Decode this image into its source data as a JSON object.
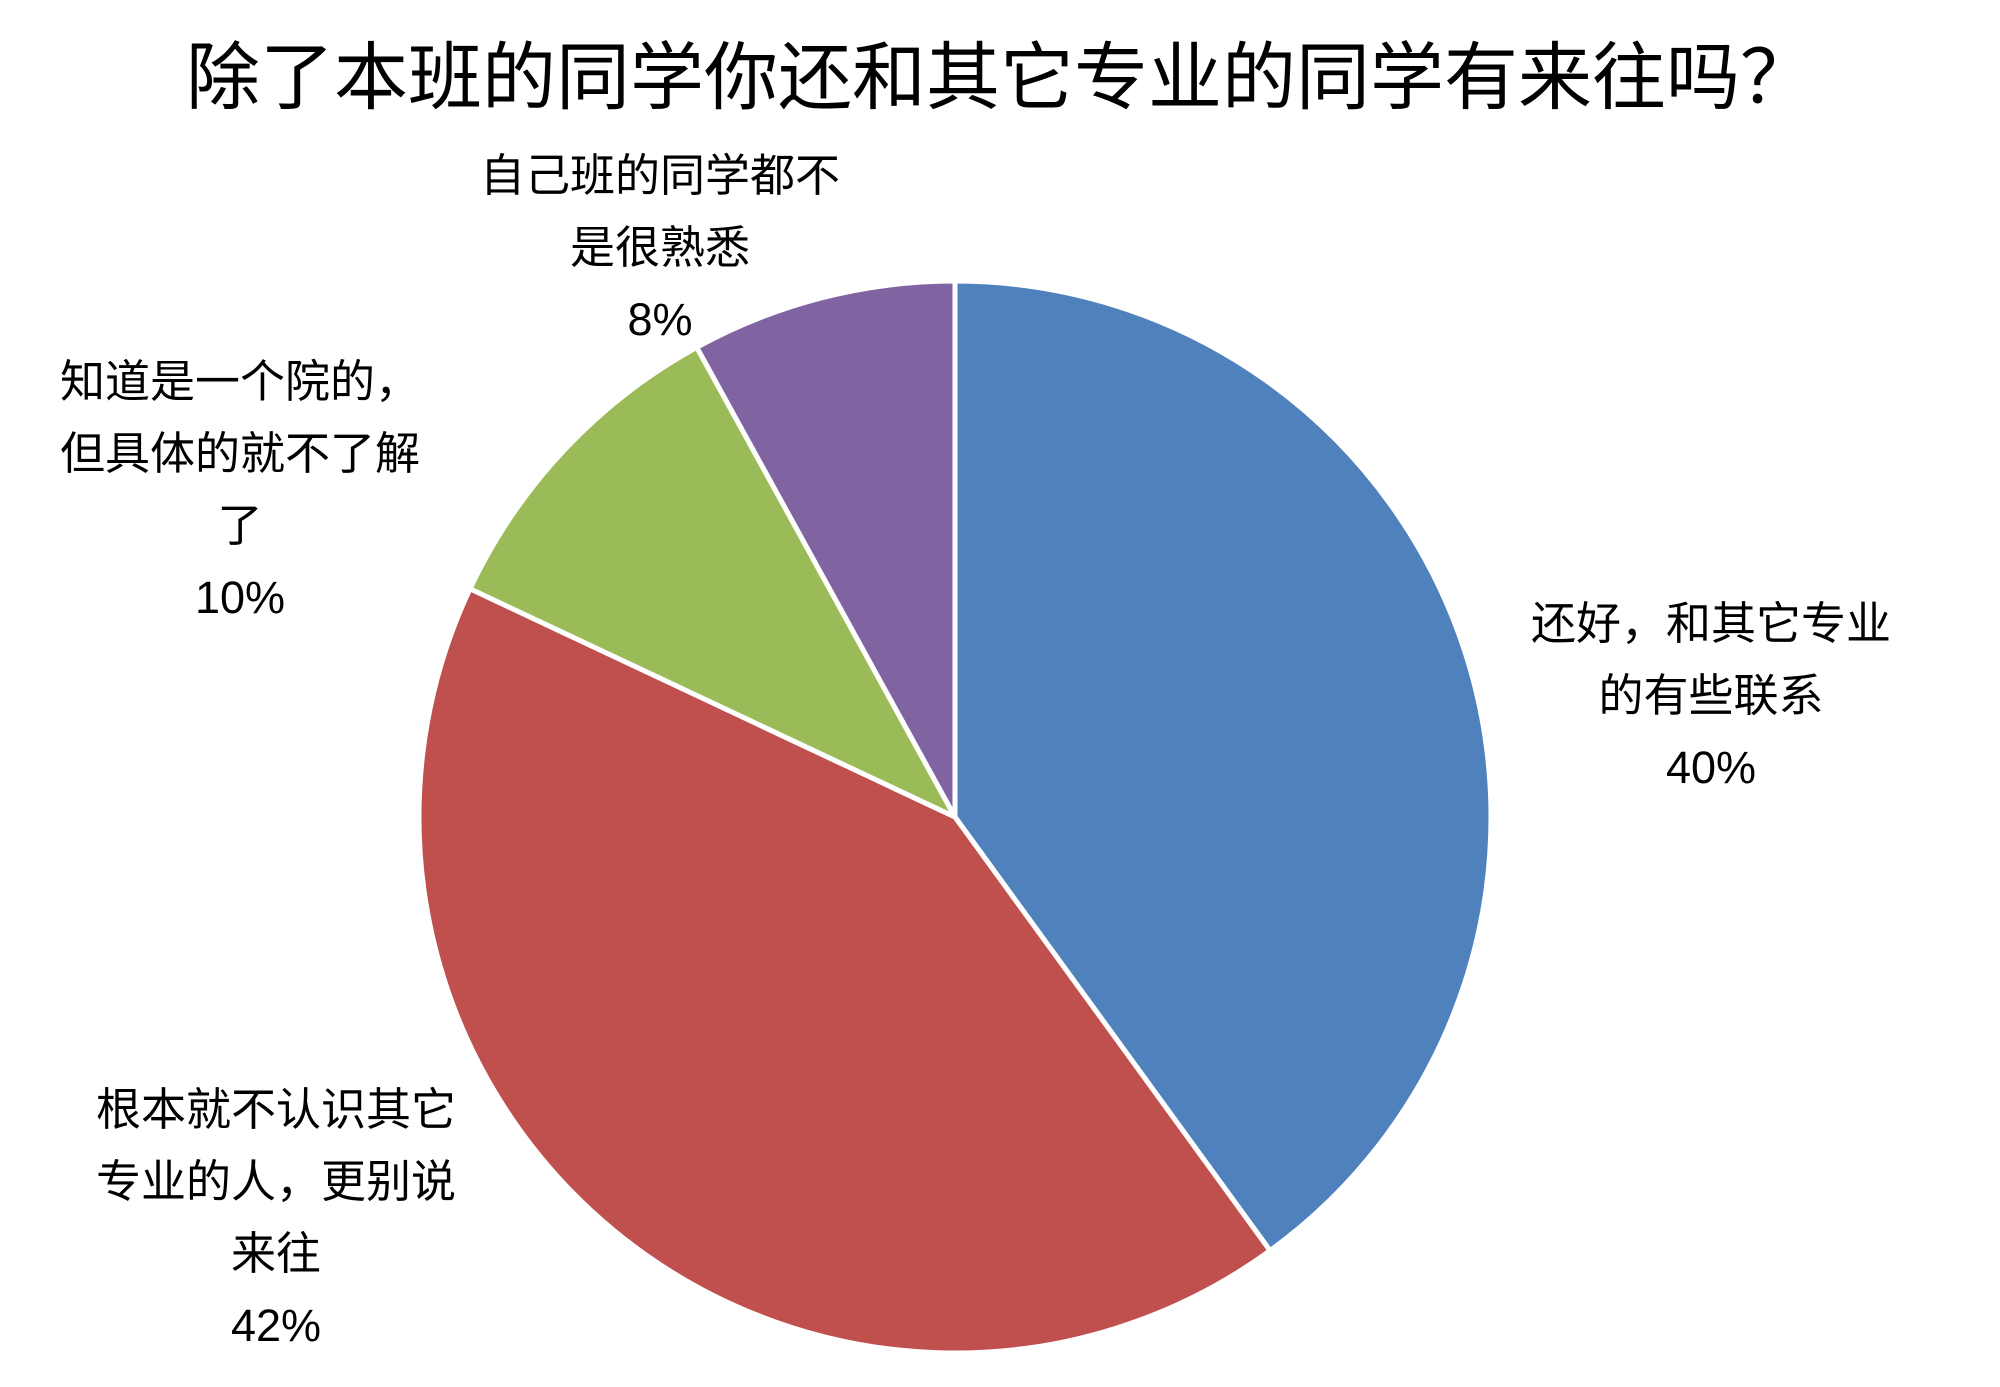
{
  "chart_data": {
    "type": "pie",
    "title": "除了本班的同学你还和其它专业的同学有来往吗？",
    "start_angle": "12 o'clock, clockwise",
    "slices": [
      {
        "label_lines": [
          "还好，和其它专业",
          "的有些联系"
        ],
        "value": 40,
        "percent_label": "40%",
        "color": "#4F81BD"
      },
      {
        "label_lines": [
          "根本就不认识其它",
          "专业的人，更别说",
          "来往"
        ],
        "value": 42,
        "percent_label": "42%",
        "color": "#C0504D"
      },
      {
        "label_lines": [
          "知道是一个院的，",
          "但具体的就不了解",
          "了"
        ],
        "value": 10,
        "percent_label": "10%",
        "color": "#9BBB59"
      },
      {
        "label_lines": [
          "自己班的同学都不",
          "是很熟悉"
        ],
        "value": 8,
        "percent_label": "8%",
        "color": "#8064A2"
      }
    ],
    "legend": "none",
    "data_labels": "outside"
  }
}
